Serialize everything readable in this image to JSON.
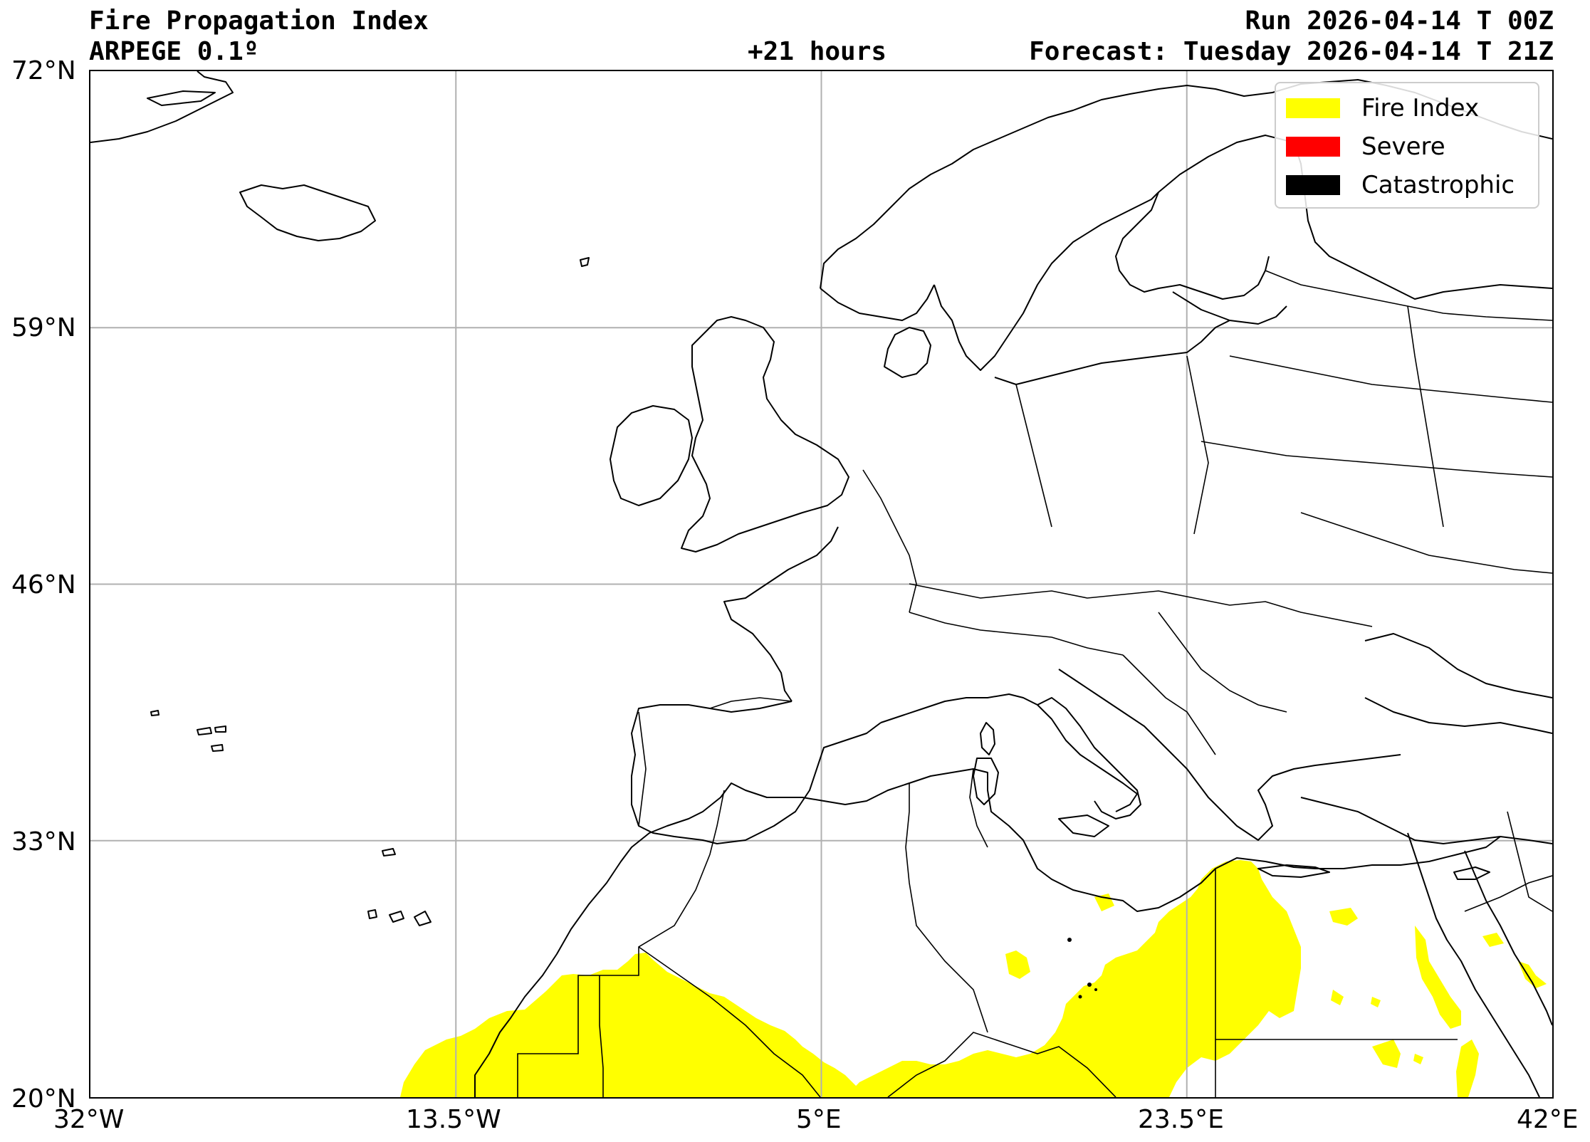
{
  "header": {
    "title": "Fire Propagation Index",
    "model": "ARPEGE 0.1º",
    "lead_time": "+21 hours",
    "run": "Run 2026-04-14 T 00Z",
    "forecast": "Forecast: Tuesday 2026-04-14 T 21Z"
  },
  "legend": {
    "items": [
      {
        "label": "Fire Index",
        "color": "#ffff00"
      },
      {
        "label": "Severe",
        "color": "#ff0000"
      },
      {
        "label": "Catastrophic",
        "color": "#000000"
      }
    ]
  },
  "axes": {
    "x_ticks": [
      "32°W",
      "13.5°W",
      "5°E",
      "23.5°E",
      "42°E"
    ],
    "y_ticks": [
      "72°N",
      "59°N",
      "46°N",
      "33°N",
      "20°N"
    ],
    "lon_range": [
      -32,
      42
    ],
    "lat_range": [
      20,
      72
    ],
    "grid": true
  },
  "colors": {
    "fire_index": "#ffff00",
    "severe": "#ff0000",
    "catastrophic": "#000000",
    "coastline": "#000000",
    "grid": "#b0b0b0"
  }
}
